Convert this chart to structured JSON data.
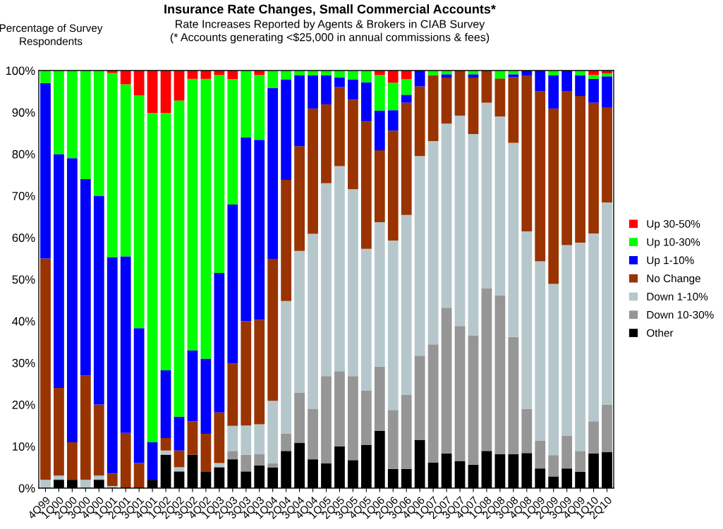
{
  "chart_data": {
    "type": "bar",
    "stacked": true,
    "title": "Insurance Rate Changes, Small Commercial Accounts*",
    "subtitle": "Rate Increases Reported by Agents & Brokers in CIAB Survey\n(* Accounts generating <$25,000 in annual commissions & fees)",
    "ylabel": "Percentage of Survey\nRespondents",
    "categories": [
      "4Q99",
      "1Q00",
      "2Q00",
      "3Q00",
      "4Q00",
      "1Q01",
      "2Q01",
      "3Q01",
      "4Q01",
      "1Q02",
      "2Q02",
      "3Q02",
      "4Q02",
      "1Q03",
      "2Q03",
      "3Q03",
      "4Q03",
      "1Q04",
      "2Q04",
      "3Q04",
      "4Q04",
      "1Q05",
      "2Q05",
      "3Q05",
      "4Q05",
      "1Q06",
      "2Q06",
      "3Q06",
      "4Q06",
      "1Q07",
      "2Q07",
      "3Q07",
      "4Q07",
      "1Q08",
      "2Q08",
      "3Q08",
      "4Q08",
      "1Q09",
      "2Q09",
      "3Q09",
      "4Q09",
      "1Q10",
      "2Q10"
    ],
    "series": [
      {
        "name": "Other",
        "color": "#000000",
        "values": [
          0,
          2,
          2,
          0,
          2,
          0,
          0,
          0,
          2,
          8,
          4,
          8,
          4,
          5,
          6.9,
          4,
          5.4,
          4.9,
          8.9,
          10.8,
          6.9,
          5.9,
          10,
          6.7,
          10.3,
          13.7,
          4.6,
          4.6,
          11.5,
          6.1,
          8.3,
          6.5,
          5.6,
          8.9,
          8.1,
          8.1,
          8.4,
          4.7,
          2.8,
          4.7,
          3.9,
          8.3,
          8.6
        ]
      },
      {
        "name": "Down 10-30%",
        "color": "#969696",
        "values": [
          0,
          0,
          0,
          0,
          0,
          0,
          0,
          0,
          0,
          0,
          0,
          0,
          0,
          0,
          2,
          4,
          2.7,
          1,
          4.1,
          12.1,
          12,
          20.9,
          18,
          20.1,
          13,
          15.4,
          14.1,
          17.7,
          20.2,
          28.3,
          34.9,
          32.3,
          30.9,
          39,
          38.1,
          28.1,
          10.6,
          6.7,
          5.1,
          7.8,
          5,
          7.7,
          11.4
        ]
      },
      {
        "name": "Down 1-10%",
        "color": "#b6c7cc",
        "values": [
          2,
          1,
          0,
          2,
          1,
          0.5,
          0,
          0,
          0,
          1,
          1,
          0,
          0,
          1,
          6,
          7,
          7.2,
          15,
          31.8,
          33.9,
          42,
          46.2,
          49.1,
          44.8,
          34,
          34.6,
          40.6,
          43.1,
          47.8,
          48.7,
          44.1,
          50.4,
          48.3,
          44.4,
          42.8,
          46.5,
          42.5,
          42.9,
          41,
          45.7,
          49.9,
          45,
          48.4
        ]
      },
      {
        "name": "No Change",
        "color": "#993300",
        "values": [
          53,
          21,
          9,
          25,
          17,
          3,
          13.2,
          6,
          0,
          3,
          4,
          8,
          9,
          12.1,
          14.9,
          25,
          25,
          34,
          29,
          25.1,
          30,
          18.9,
          18.9,
          21.4,
          30.5,
          17.2,
          26.3,
          26.9,
          16.7,
          15.8,
          11,
          10.8,
          13.5,
          7.7,
          9.1,
          15.7,
          37.2,
          40.7,
          42,
          36.8,
          35.1,
          31.3,
          22.8
        ]
      },
      {
        "name": "Up 1-10%",
        "color": "#0000ff",
        "values": [
          42,
          56,
          68,
          47,
          50,
          51.8,
          42.3,
          32.3,
          9,
          16.2,
          8.1,
          17,
          18,
          33.4,
          38.1,
          44,
          43.1,
          40.9,
          24.1,
          17,
          8,
          7,
          2.3,
          4.8,
          9.4,
          9.5,
          4.9,
          1.9,
          3.8,
          0,
          0.8,
          0,
          0.8,
          0,
          0,
          0.7,
          1.3,
          5,
          8,
          5,
          5,
          5.7,
          7.4
        ]
      },
      {
        "name": "Up 10-30%",
        "color": "#00ff00",
        "values": [
          3,
          20,
          21,
          26,
          30,
          44.1,
          41.2,
          55.7,
          78.8,
          61.6,
          75.7,
          65,
          67,
          47.4,
          30,
          16,
          15.5,
          4.2,
          2.1,
          1.1,
          1.1,
          1.1,
          1.7,
          2.2,
          2.8,
          8.5,
          6.6,
          3.7,
          0,
          1.1,
          0.9,
          0,
          0.9,
          0,
          1.9,
          0.9,
          0,
          0,
          1.1,
          0,
          1.1,
          0.9,
          0.7
        ]
      },
      {
        "name": "Up 30-50%",
        "color": "#ff0000",
        "values": [
          0,
          0,
          0,
          0,
          0,
          0.6,
          3.3,
          6,
          10.2,
          10.2,
          7.2,
          2,
          2,
          1.1,
          2.1,
          0,
          1.1,
          0,
          0,
          0,
          0,
          0,
          0,
          0,
          0,
          1.1,
          2.9,
          2.1,
          0,
          0,
          0,
          0,
          0,
          0,
          0,
          0,
          0,
          0,
          0,
          0,
          0,
          1.1,
          0.7
        ]
      }
    ],
    "ylim": [
      0,
      100
    ],
    "yticks": [
      {
        "value": 0,
        "label": "0%"
      },
      {
        "value": 10,
        "label": "10%"
      },
      {
        "value": 20,
        "label": "20%"
      },
      {
        "value": 30,
        "label": "30%"
      },
      {
        "value": 40,
        "label": "40%"
      },
      {
        "value": 50,
        "label": "50%"
      },
      {
        "value": 60,
        "label": "60%"
      },
      {
        "value": 70,
        "label": "70%"
      },
      {
        "value": 80,
        "label": "80%"
      },
      {
        "value": 90,
        "label": "90%"
      },
      {
        "value": 100,
        "label": "100%"
      }
    ],
    "legend": "right",
    "grid": false
  }
}
